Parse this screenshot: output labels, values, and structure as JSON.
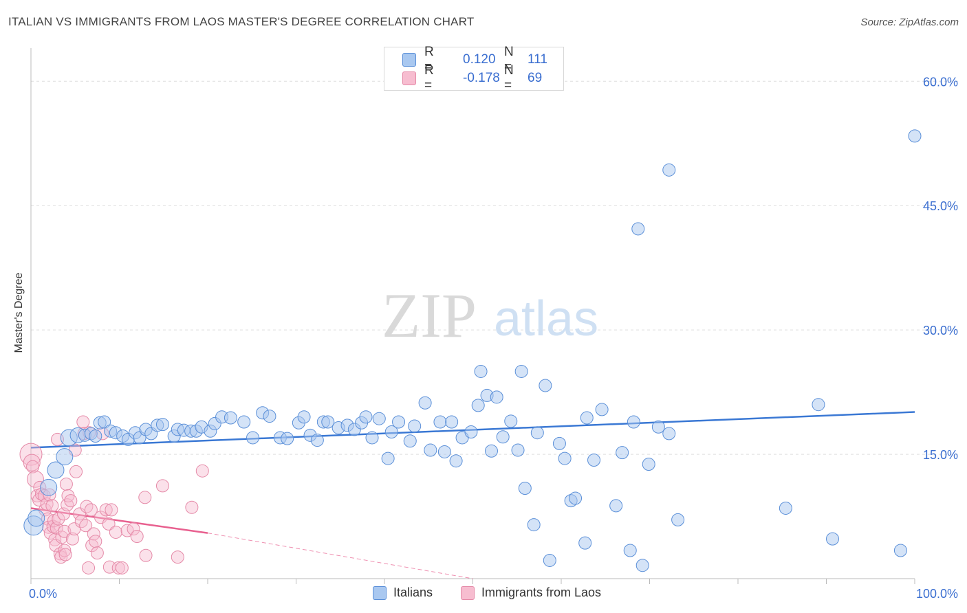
{
  "title": "ITALIAN VS IMMIGRANTS FROM LAOS MASTER'S DEGREE CORRELATION CHART",
  "source": "Source: ZipAtlas.com",
  "watermark": {
    "zip": "ZIP",
    "atlas": "atlas"
  },
  "legend": {
    "rows": [
      {
        "r_label": "R =",
        "r_value": "0.120",
        "n_label": "N =",
        "n_value": "111",
        "color": "#a9c8f0",
        "border": "#5a8fd8"
      },
      {
        "r_label": "R =",
        "r_value": "-0.178",
        "n_label": "N =",
        "n_value": "69",
        "color": "#f7bdd0",
        "border": "#e58aa8"
      }
    ]
  },
  "bottom_legend": [
    {
      "label": "Italians",
      "color": "#a9c8f0",
      "border": "#5a8fd8"
    },
    {
      "label": "Immigrants from Laos",
      "color": "#f7bdd0",
      "border": "#e58aa8"
    }
  ],
  "chart_data": {
    "type": "scatter",
    "title": "ITALIAN VS IMMIGRANTS FROM LAOS MASTER'S DEGREE CORRELATION CHART",
    "xlabel": "",
    "ylabel": "Master's Degree",
    "xlim": [
      0,
      100
    ],
    "ylim": [
      0,
      64
    ],
    "x_tick_labels": [
      "0.0%",
      "100.0%"
    ],
    "y_ticks": [
      15,
      30,
      45,
      60
    ],
    "y_tick_labels": [
      "15.0%",
      "30.0%",
      "45.0%",
      "60.0%"
    ],
    "colors": {
      "italians": "#3a78d4",
      "laos": "#e8608f",
      "axis_label": "#3a6ed0"
    },
    "series": [
      {
        "name": "Italians",
        "trend": {
          "x": [
            0,
            100
          ],
          "y": [
            15.8,
            20.1
          ],
          "style": "solid"
        },
        "points": [
          [
            0.3,
            6.4,
            14
          ],
          [
            0.6,
            7.3,
            12
          ],
          [
            2.0,
            11.0,
            12
          ],
          [
            2.8,
            13.1,
            12
          ],
          [
            3.8,
            14.7,
            12
          ],
          [
            4.3,
            17.0,
            12
          ],
          [
            5.3,
            17.3,
            11
          ],
          [
            6.1,
            17.3,
            9
          ],
          [
            6.8,
            17.5,
            9
          ],
          [
            7.3,
            17.2,
            9
          ],
          [
            7.8,
            18.8,
            9
          ],
          [
            8.3,
            18.9,
            9
          ],
          [
            9.0,
            17.8,
            9
          ],
          [
            9.6,
            17.6,
            9
          ],
          [
            10.4,
            17.2,
            9
          ],
          [
            11.0,
            16.8,
            9
          ],
          [
            11.8,
            17.6,
            9
          ],
          [
            12.3,
            17.0,
            9
          ],
          [
            13.0,
            18.0,
            9
          ],
          [
            13.6,
            17.5,
            9
          ],
          [
            14.3,
            18.5,
            9
          ],
          [
            14.9,
            18.6,
            9
          ],
          [
            16.2,
            17.2,
            9
          ],
          [
            16.6,
            18.0,
            9
          ],
          [
            17.3,
            17.9,
            9
          ],
          [
            18.1,
            17.8,
            9
          ],
          [
            18.7,
            17.8,
            9
          ],
          [
            19.3,
            18.3,
            9
          ],
          [
            20.3,
            17.8,
            9
          ],
          [
            20.8,
            18.7,
            9
          ],
          [
            21.6,
            19.5,
            9
          ],
          [
            22.6,
            19.4,
            9
          ],
          [
            24.1,
            18.9,
            9
          ],
          [
            25.1,
            17.0,
            9
          ],
          [
            26.2,
            20.0,
            9
          ],
          [
            27.0,
            19.6,
            9
          ],
          [
            28.2,
            17.0,
            9
          ],
          [
            29.0,
            16.9,
            9
          ],
          [
            30.3,
            18.8,
            9
          ],
          [
            30.9,
            19.5,
            9
          ],
          [
            31.6,
            17.3,
            9
          ],
          [
            32.4,
            16.7,
            9
          ],
          [
            33.1,
            18.9,
            9
          ],
          [
            33.6,
            18.9,
            9
          ],
          [
            34.8,
            18.2,
            9
          ],
          [
            35.8,
            18.5,
            9
          ],
          [
            36.6,
            18.0,
            9
          ],
          [
            37.4,
            18.8,
            9
          ],
          [
            37.9,
            19.5,
            9
          ],
          [
            38.6,
            17.0,
            9
          ],
          [
            39.4,
            19.3,
            9
          ],
          [
            40.4,
            14.5,
            9
          ],
          [
            40.8,
            17.7,
            9
          ],
          [
            41.6,
            18.9,
            9
          ],
          [
            42.9,
            16.6,
            9
          ],
          [
            43.4,
            18.4,
            9
          ],
          [
            44.6,
            21.2,
            9
          ],
          [
            45.2,
            15.5,
            9
          ],
          [
            46.3,
            18.9,
            9
          ],
          [
            46.8,
            15.3,
            9
          ],
          [
            47.6,
            18.9,
            9
          ],
          [
            48.1,
            14.2,
            9
          ],
          [
            48.8,
            17.0,
            9
          ],
          [
            49.8,
            17.7,
            9
          ],
          [
            50.6,
            20.9,
            9
          ],
          [
            50.9,
            25.0,
            9
          ],
          [
            51.6,
            22.1,
            9
          ],
          [
            52.1,
            15.4,
            9
          ],
          [
            52.7,
            21.9,
            9
          ],
          [
            53.4,
            17.1,
            9
          ],
          [
            54.3,
            19.0,
            9
          ],
          [
            55.1,
            15.5,
            9
          ],
          [
            55.5,
            25.0,
            9
          ],
          [
            55.9,
            10.9,
            9
          ],
          [
            56.9,
            6.5,
            9
          ],
          [
            57.3,
            17.6,
            9
          ],
          [
            58.2,
            23.3,
            9
          ],
          [
            58.7,
            2.2,
            9
          ],
          [
            59.8,
            16.3,
            9
          ],
          [
            60.4,
            14.5,
            9
          ],
          [
            61.1,
            9.4,
            9
          ],
          [
            61.6,
            9.7,
            9
          ],
          [
            62.7,
            4.3,
            9
          ],
          [
            62.9,
            19.4,
            9
          ],
          [
            63.7,
            14.3,
            9
          ],
          [
            64.6,
            20.4,
            9
          ],
          [
            66.2,
            8.8,
            9
          ],
          [
            66.9,
            15.2,
            9
          ],
          [
            67.8,
            3.4,
            9
          ],
          [
            68.2,
            18.9,
            9
          ],
          [
            68.7,
            42.2,
            9
          ],
          [
            69.2,
            1.6,
            9
          ],
          [
            69.9,
            13.8,
            9
          ],
          [
            71.0,
            18.3,
            9
          ],
          [
            72.2,
            17.5,
            9
          ],
          [
            72.2,
            49.3,
            9
          ],
          [
            73.2,
            7.1,
            9
          ],
          [
            85.4,
            8.5,
            9
          ],
          [
            89.1,
            21.0,
            9
          ],
          [
            90.7,
            4.8,
            9
          ],
          [
            98.4,
            3.4,
            9
          ],
          [
            100.0,
            53.4,
            9
          ]
        ]
      },
      {
        "name": "Immigrants from Laos",
        "trend": {
          "x": [
            0,
            20
          ],
          "y": [
            8.5,
            5.5
          ],
          "style": "solid",
          "extension": {
            "x": [
              20,
              50
            ],
            "y": [
              5.5,
              0.0
            ],
            "style": "dashed"
          }
        },
        "points": [
          [
            0.0,
            15.0,
            16
          ],
          [
            0.1,
            14.0,
            12
          ],
          [
            0.2,
            13.5,
            9
          ],
          [
            0.5,
            12.0,
            12
          ],
          [
            0.7,
            10.0,
            9
          ],
          [
            0.9,
            9.5,
            9
          ],
          [
            1.0,
            11.0,
            9
          ],
          [
            1.2,
            10.2,
            9
          ],
          [
            1.5,
            10.0,
            9
          ],
          [
            1.6,
            8.3,
            9
          ],
          [
            1.8,
            9.0,
            9
          ],
          [
            1.9,
            7.2,
            9
          ],
          [
            2.0,
            6.2,
            9
          ],
          [
            2.1,
            10.1,
            9
          ],
          [
            2.2,
            5.5,
            9
          ],
          [
            2.4,
            8.8,
            9
          ],
          [
            2.5,
            6.3,
            9
          ],
          [
            2.6,
            7.0,
            9
          ],
          [
            2.7,
            4.7,
            9
          ],
          [
            2.8,
            4.0,
            9
          ],
          [
            2.9,
            6.1,
            9
          ],
          [
            3.0,
            16.8,
            9
          ],
          [
            3.1,
            7.2,
            9
          ],
          [
            3.3,
            3.0,
            9
          ],
          [
            3.4,
            2.6,
            9
          ],
          [
            3.5,
            5.0,
            9
          ],
          [
            3.7,
            7.8,
            9
          ],
          [
            3.8,
            5.7,
            9
          ],
          [
            3.8,
            3.4,
            9
          ],
          [
            3.9,
            2.9,
            9
          ],
          [
            4.0,
            11.4,
            9
          ],
          [
            4.1,
            8.9,
            9
          ],
          [
            4.2,
            10.0,
            9
          ],
          [
            4.5,
            9.4,
            9
          ],
          [
            4.7,
            4.8,
            9
          ],
          [
            4.9,
            6.0,
            9
          ],
          [
            5.0,
            15.5,
            9
          ],
          [
            5.1,
            12.9,
            9
          ],
          [
            5.5,
            7.8,
            9
          ],
          [
            5.7,
            6.9,
            9
          ],
          [
            5.9,
            18.9,
            9
          ],
          [
            6.0,
            17.5,
            9
          ],
          [
            6.2,
            6.4,
            9
          ],
          [
            6.3,
            8.7,
            9
          ],
          [
            6.5,
            1.3,
            9
          ],
          [
            6.6,
            17.6,
            9
          ],
          [
            6.8,
            8.3,
            9
          ],
          [
            6.9,
            4.0,
            9
          ],
          [
            7.1,
            5.4,
            9
          ],
          [
            7.3,
            4.5,
            9
          ],
          [
            7.5,
            3.1,
            9
          ],
          [
            7.9,
            7.4,
            9
          ],
          [
            8.1,
            17.5,
            9
          ],
          [
            8.5,
            8.3,
            9
          ],
          [
            8.8,
            6.6,
            9
          ],
          [
            8.9,
            1.4,
            9
          ],
          [
            9.1,
            8.3,
            9
          ],
          [
            9.6,
            5.6,
            9
          ],
          [
            9.9,
            1.3,
            9
          ],
          [
            10.3,
            1.3,
            9
          ],
          [
            10.9,
            5.8,
            9
          ],
          [
            11.6,
            6.0,
            9
          ],
          [
            12.0,
            5.1,
            9
          ],
          [
            12.9,
            9.8,
            9
          ],
          [
            13.0,
            2.8,
            9
          ],
          [
            14.9,
            11.2,
            9
          ],
          [
            16.6,
            2.6,
            9
          ],
          [
            18.2,
            8.6,
            9
          ],
          [
            19.4,
            13.0,
            9
          ]
        ]
      }
    ]
  }
}
